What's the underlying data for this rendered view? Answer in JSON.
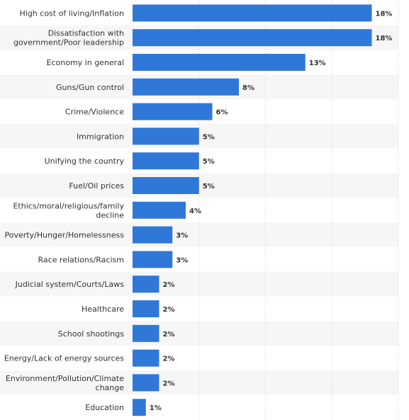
{
  "chart_data": {
    "type": "bar",
    "orientation": "horizontal",
    "categories": [
      [
        "High cost of living/Inflation"
      ],
      [
        "Dissatisfaction with",
        "government/Poor leadership"
      ],
      [
        "Economy in general"
      ],
      [
        "Guns/Gun control"
      ],
      [
        "Crime/Violence"
      ],
      [
        "Immigration"
      ],
      [
        "Unifying the country"
      ],
      [
        "Fuel/Oil prices"
      ],
      [
        "Ethics/moral/religious/family",
        "decline"
      ],
      [
        "Poverty/Hunger/Homelessness"
      ],
      [
        "Race relations/Racism"
      ],
      [
        "Judicial system/Courts/Laws"
      ],
      [
        "Healthcare"
      ],
      [
        "School shootings"
      ],
      [
        "Energy/Lack of energy sources"
      ],
      [
        "Environment/Pollution/Climate",
        "change"
      ],
      [
        "Education"
      ]
    ],
    "values": [
      18,
      18,
      13,
      8,
      6,
      5,
      5,
      5,
      4,
      3,
      3,
      2,
      2,
      2,
      2,
      2,
      1
    ],
    "value_labels": [
      "18%",
      "18%",
      "13%",
      "8%",
      "6%",
      "5%",
      "5%",
      "5%",
      "4%",
      "3%",
      "3%",
      "2%",
      "2%",
      "2%",
      "2%",
      "2%",
      "1%"
    ],
    "xlim": [
      0,
      20
    ],
    "grid": true,
    "colors": {
      "bar": "#2f78d8",
      "grid": "#cfcfcf",
      "band": "#f6f6f6"
    }
  }
}
